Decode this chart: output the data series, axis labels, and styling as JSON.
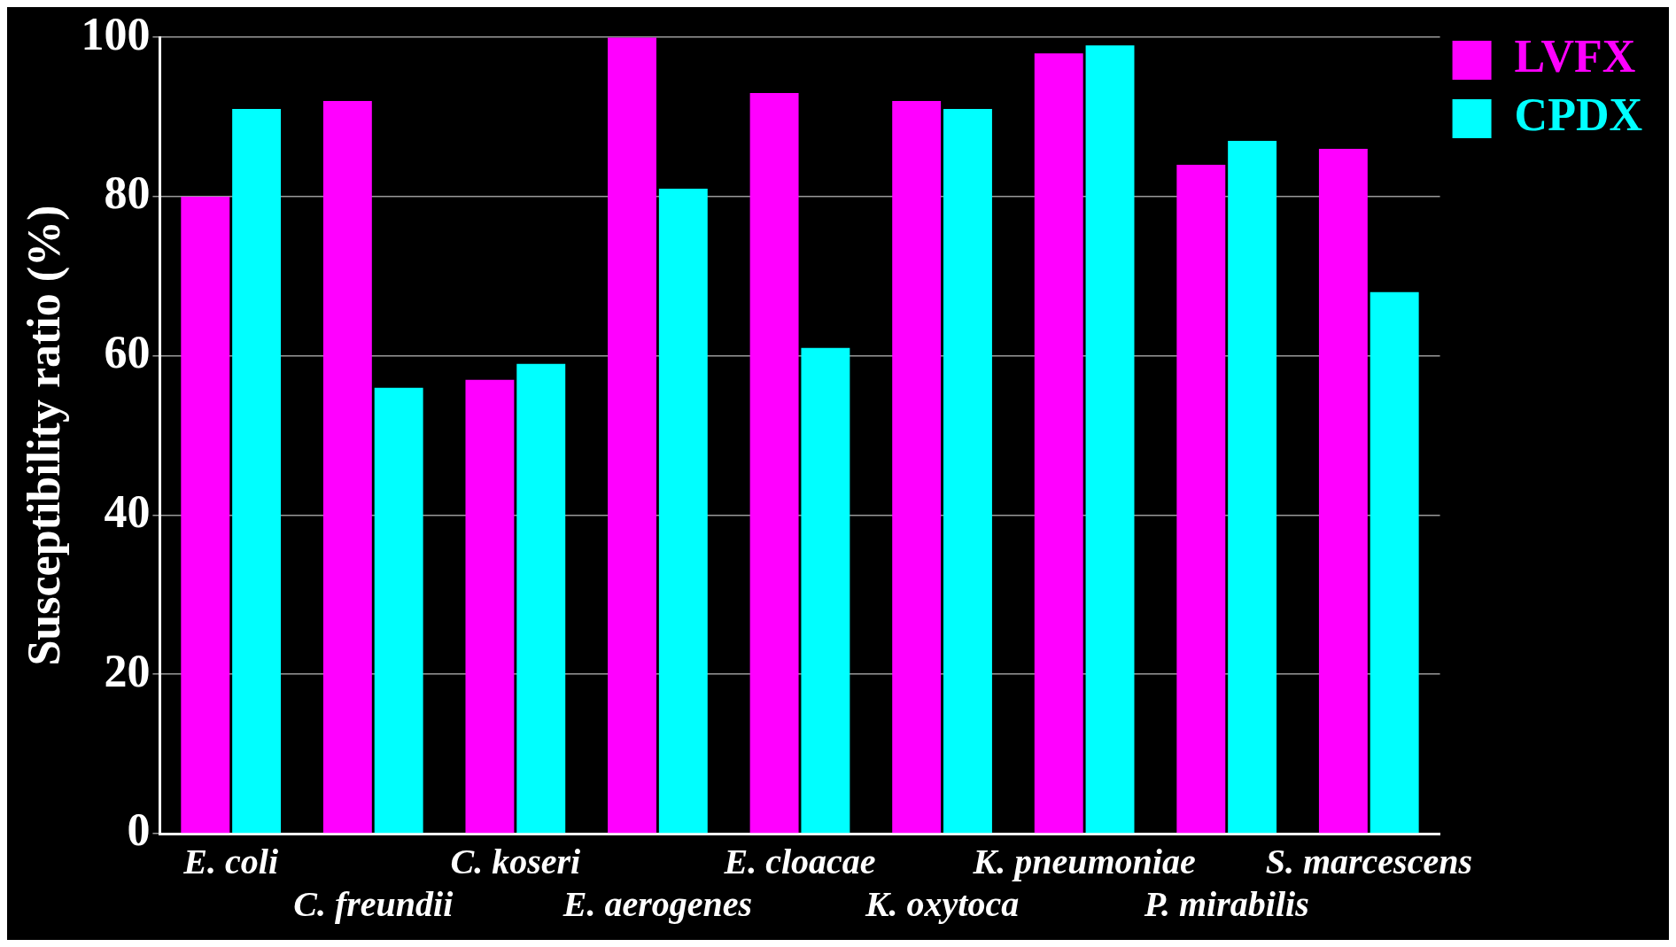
{
  "chart_data": {
    "type": "bar",
    "ylabel": "Susceptibility ratio (%)",
    "categories": [
      "E. coli",
      "C. freundii",
      "C. koseri",
      "E. aerogenes",
      "E. cloacae",
      "K. oxytoca",
      "K. pneumoniae",
      "P. mirabilis",
      "S. marcescens"
    ],
    "series": [
      {
        "name": "LVFX",
        "color": "#ff00ff",
        "values": [
          80,
          92,
          57,
          100,
          93,
          92,
          98,
          84,
          86
        ]
      },
      {
        "name": "CPDX",
        "color": "#00ffff",
        "values": [
          91,
          56,
          59,
          81,
          61,
          91,
          99,
          87,
          68
        ]
      }
    ],
    "ylim": [
      0,
      100
    ],
    "yticks": [
      0,
      20,
      40,
      60,
      80,
      100
    ],
    "grid": "y",
    "legend": "top right"
  }
}
